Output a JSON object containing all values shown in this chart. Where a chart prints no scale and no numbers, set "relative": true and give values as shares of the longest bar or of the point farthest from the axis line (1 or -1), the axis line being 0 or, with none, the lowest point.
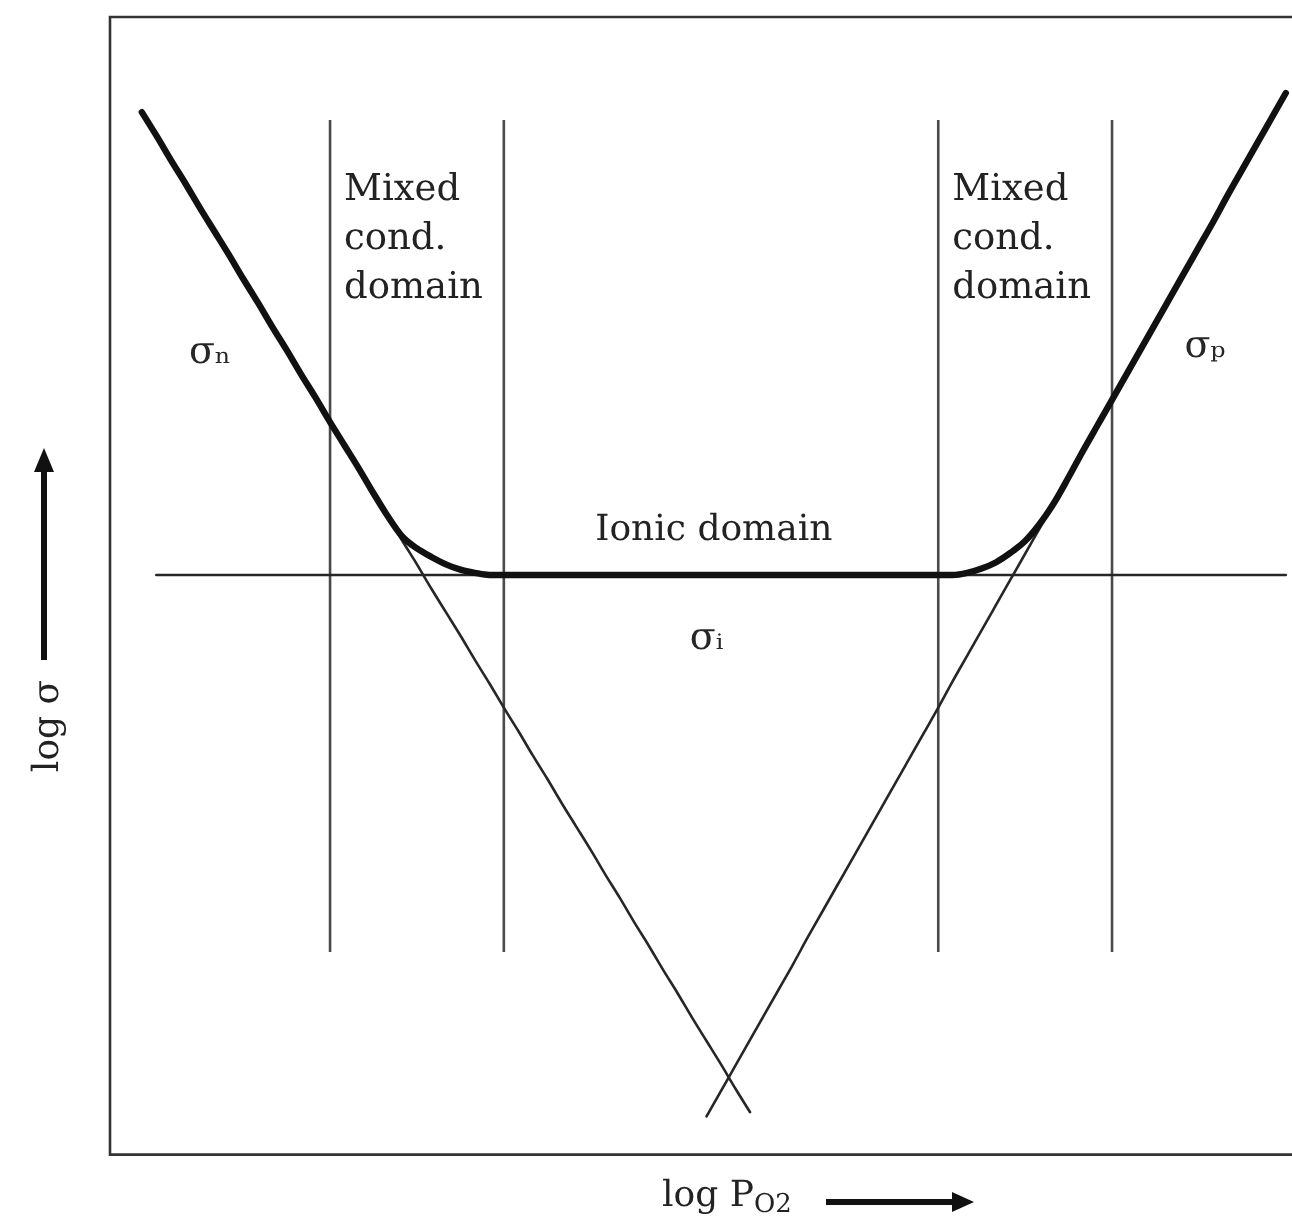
{
  "chart_data": {
    "type": "line",
    "relative": true,
    "xlabel": "log P$_{O2}$",
    "ylabel": "log σ",
    "grid": "x",
    "categories": [
      null,
      null,
      null,
      null,
      null,
      null,
      null,
      null,
      null,
      null,
      null,
      null,
      null,
      null,
      null,
      null,
      null,
      null,
      null,
      null,
      null,
      null,
      null,
      null,
      null,
      null,
      null,
      null,
      null,
      null,
      null,
      null,
      null,
      null,
      null,
      null,
      null,
      null,
      null,
      null,
      null,
      null,
      null,
      null,
      null,
      null,
      null,
      null,
      null,
      null,
      null,
      null,
      null,
      null,
      null,
      null,
      null,
      null,
      null,
      null,
      null,
      null,
      null,
      null,
      null,
      null,
      null,
      null,
      null,
      null,
      null,
      null,
      null,
      null,
      null,
      null,
      null,
      null,
      null,
      null
    ],
    "series": [
      {
        "name": "σₙ",
        "color": "#262626",
        "values": [
          0.982,
          0.96,
          0.937,
          0.915,
          0.892,
          0.87,
          0.848,
          0.825,
          0.803,
          0.78,
          0.758,
          0.735,
          0.713,
          0.69,
          0.668,
          0.646,
          0.623,
          0.601,
          0.578,
          0.556,
          0.533,
          0.511,
          0.489,
          0.466,
          0.444,
          0.421,
          0.399,
          0.376,
          0.354,
          0.331,
          0.309,
          0.287,
          0.264,
          0.242,
          0.219,
          0.197,
          0.174,
          0.152,
          0.129,
          0.107,
          0.085,
          0.062,
          0.04,
          null,
          null,
          null,
          null,
          null,
          null,
          null,
          null,
          null,
          null,
          null,
          null,
          null,
          null,
          null,
          null,
          null,
          null,
          null,
          null,
          null,
          null,
          null,
          null,
          null,
          null,
          null,
          null,
          null,
          null,
          null,
          null,
          null,
          null,
          null,
          null,
          null
        ]
      },
      {
        "name": "σₚ",
        "color": "#262626",
        "values": [
          null,
          null,
          null,
          null,
          null,
          null,
          null,
          null,
          null,
          null,
          null,
          null,
          null,
          null,
          null,
          null,
          null,
          null,
          null,
          null,
          null,
          null,
          null,
          null,
          null,
          null,
          null,
          null,
          null,
          null,
          null,
          null,
          null,
          null,
          null,
          null,
          null,
          null,
          null,
          0.036,
          0.06,
          0.084,
          0.108,
          0.132,
          0.156,
          0.18,
          0.205,
          0.229,
          0.253,
          0.277,
          0.301,
          0.325,
          0.349,
          0.373,
          0.397,
          0.421,
          0.446,
          0.47,
          0.494,
          0.518,
          0.542,
          0.566,
          0.59,
          0.614,
          0.638,
          0.663,
          0.687,
          0.711,
          0.735,
          0.759,
          0.783,
          0.807,
          0.831,
          0.855,
          0.879,
          0.904,
          0.928,
          0.952,
          0.976,
          1
        ]
      },
      {
        "name": "σᵢ",
        "color": "#262626",
        "values": [
          null,
          0.546,
          0.546,
          0.546,
          0.546,
          0.546,
          0.546,
          0.546,
          0.546,
          0.546,
          0.546,
          0.546,
          0.546,
          0.546,
          0.546,
          0.546,
          0.546,
          0.546,
          0.546,
          0.546,
          0.546,
          0.546,
          0.546,
          0.546,
          0.546,
          0.546,
          0.546,
          0.546,
          0.546,
          0.546,
          0.546,
          0.546,
          0.546,
          0.546,
          0.546,
          0.546,
          0.546,
          0.546,
          0.546,
          0.546,
          0.546,
          0.546,
          0.546,
          0.546,
          0.546,
          0.546,
          0.546,
          0.546,
          0.546,
          0.546,
          0.546,
          0.546,
          0.546,
          0.546,
          0.546,
          0.546,
          0.546,
          0.546,
          0.546,
          0.546,
          0.546,
          0.546,
          0.546,
          0.546,
          0.546,
          0.546,
          0.546,
          0.546,
          0.546,
          0.546,
          0.546,
          0.546,
          0.546,
          0.546,
          0.546,
          0.546,
          0.546,
          0.546,
          0.546,
          0.546
        ]
      },
      {
        "color": "#111111",
        "values": [
          0.982,
          0.96,
          0.937,
          0.915,
          0.892,
          0.87,
          0.848,
          0.825,
          0.803,
          0.78,
          0.758,
          0.735,
          0.713,
          0.69,
          0.668,
          0.646,
          0.623,
          0.601,
          0.582,
          0.571,
          0.563,
          0.556,
          0.551,
          0.548,
          0.546,
          0.546,
          0.546,
          0.546,
          0.546,
          0.546,
          0.546,
          0.546,
          0.546,
          0.546,
          0.546,
          0.546,
          0.546,
          0.546,
          0.546,
          0.546,
          0.546,
          0.546,
          0.546,
          0.546,
          0.546,
          0.546,
          0.546,
          0.546,
          0.546,
          0.546,
          0.546,
          0.546,
          0.546,
          0.546,
          0.546,
          0.546,
          0.546,
          0.548,
          0.552,
          0.558,
          0.567,
          0.578,
          0.594,
          0.614,
          0.638,
          0.663,
          0.687,
          0.711,
          0.735,
          0.759,
          0.783,
          0.807,
          0.831,
          0.855,
          0.879,
          0.904,
          0.928,
          0.952,
          0.976,
          1
        ]
      }
    ],
    "annotations": [
      "Mixed cond. domain",
      "Ionic domain",
      "Mixed cond. domain"
    ]
  }
}
